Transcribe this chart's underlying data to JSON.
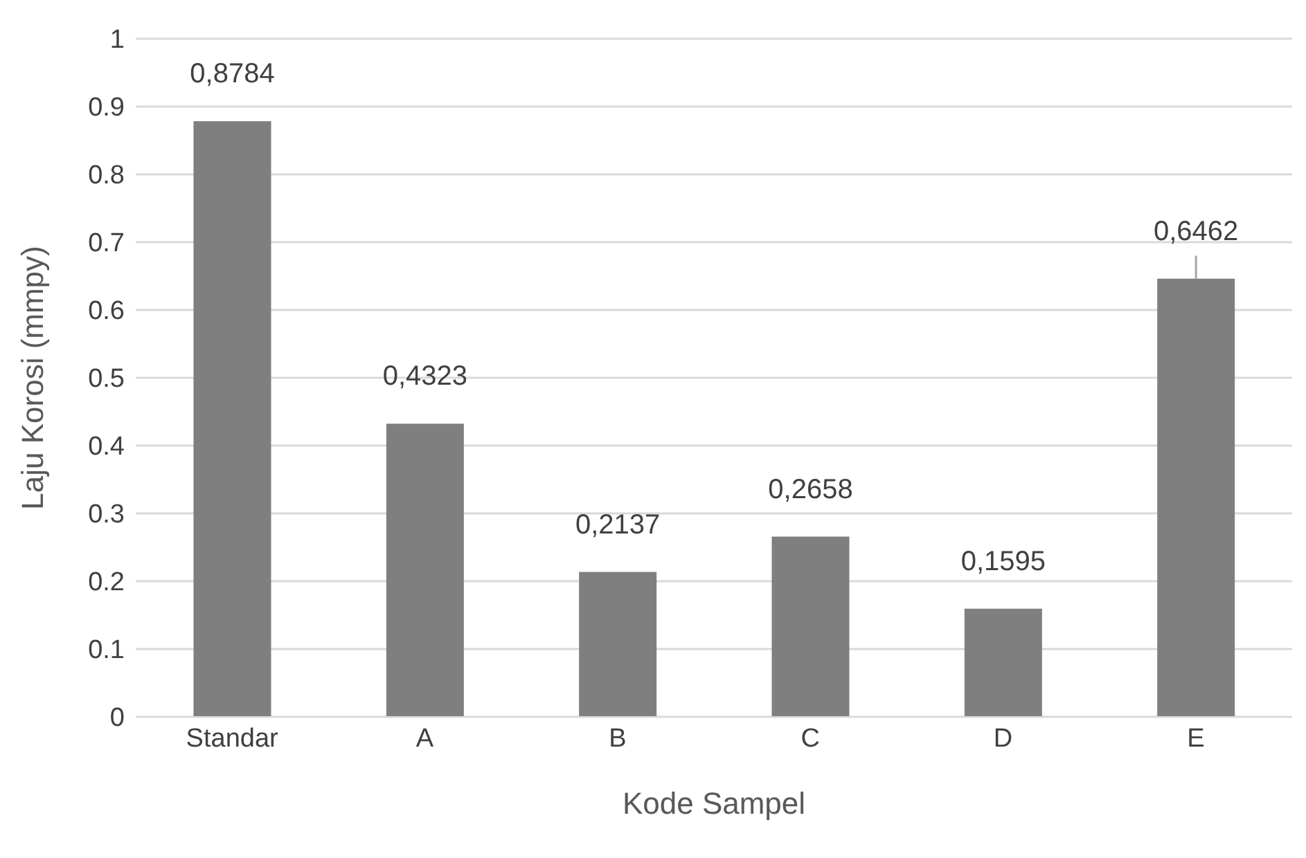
{
  "chart_data": {
    "type": "bar",
    "xlabel": "Kode Sampel",
    "ylabel": "Laju Korosi (mmpy)",
    "categories": [
      "Standar",
      "A",
      "B",
      "C",
      "D",
      "E"
    ],
    "values": [
      0.8784,
      0.4323,
      0.2137,
      0.2658,
      0.1595,
      0.6462
    ],
    "value_labels": [
      "0,8784",
      "0,4323",
      "0,2137",
      "0,2658",
      "0,1595",
      "0,6462"
    ],
    "errors": [
      null,
      null,
      null,
      null,
      null,
      [
        0.6462,
        0.68
      ]
    ],
    "color": "#7f7f7f",
    "ylim": [
      0,
      1
    ],
    "yticks": [
      0,
      0.1,
      0.2,
      0.3,
      0.4,
      0.5,
      0.6,
      0.7,
      0.8,
      0.9,
      1
    ],
    "grid": "y",
    "legend": false
  }
}
